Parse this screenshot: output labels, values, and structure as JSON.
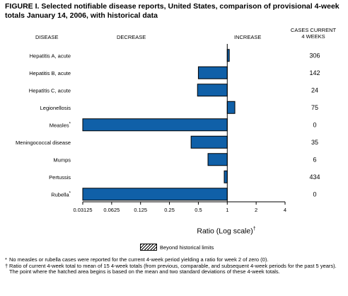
{
  "title": "FIGURE I. Selected notifiable disease reports, United States, comparison of provisional 4-week totals January 14, 2006, with historical data",
  "headers": {
    "disease": "DISEASE",
    "decrease": "DECREASE",
    "increase": "INCREASE",
    "cases_line1": "CASES CURRENT",
    "cases_line2": "4 WEEKS"
  },
  "legend_label": "Beyond historical limits",
  "footnotes": {
    "star_mark": "*",
    "star_text": "No measles or rubella cases were reported for the current 4-week period yielding a ratio for week 2 of zero (0).",
    "dagger_mark": "†",
    "dagger_text": "Ratio of current 4-week total to mean of 15 4-week totals (from previous, comparable, and subsequent 4-week periods for the past 5 years). The point where the hatched area begins is based on the mean and two standard deviations of these 4-week totals."
  },
  "colors": {
    "bar": "#1060a8",
    "bar_stroke": "#000000"
  },
  "chart_data": {
    "type": "bar",
    "orientation": "horizontal",
    "xscale": "log2",
    "xlabel": "Ratio (Log scale)",
    "xlabel_mark": "†",
    "xlim": [
      0.03125,
      4
    ],
    "xticks": [
      "0.03125",
      "0.0625",
      "0.125",
      "0.25",
      "0.5",
      "1",
      "2",
      "4"
    ],
    "baseline": 1,
    "categories": [
      "Hepatitis A, acute",
      "Hepatitis B, acute",
      "Hepatitis C, acute",
      "Legionellosis",
      "Measles",
      "Meningococcal disease",
      "Mumps",
      "Pertussis",
      "Rubella"
    ],
    "category_marks": [
      "",
      "",
      "",
      "",
      "*",
      "",
      "",
      "",
      "*"
    ],
    "values": [
      1.05,
      0.5,
      0.49,
      1.2,
      0.03125,
      0.42,
      0.63,
      0.93,
      0.03125
    ],
    "cases": [
      "306",
      "142",
      "24",
      "75",
      "0",
      "35",
      "6",
      "434",
      "0"
    ]
  }
}
